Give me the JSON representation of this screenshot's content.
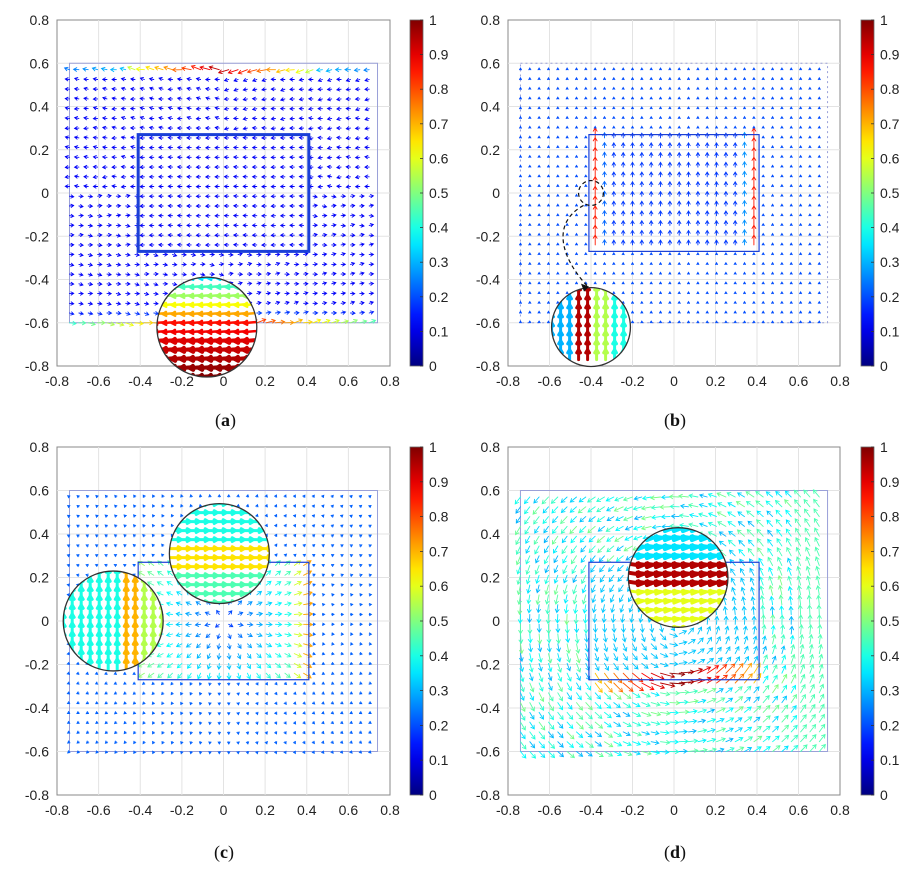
{
  "figure": {
    "panels": [
      {
        "id": "a",
        "caption_open": "(",
        "caption_letter": "a",
        "caption_close": ")"
      },
      {
        "id": "b",
        "caption_open": "(",
        "caption_letter": "b",
        "caption_close": ")"
      },
      {
        "id": "c",
        "caption_open": "(",
        "caption_letter": "c",
        "caption_close": ")"
      },
      {
        "id": "d",
        "caption_open": "(",
        "caption_letter": "d",
        "caption_close": ")"
      }
    ]
  },
  "chart_data": [
    {
      "panel": "a",
      "type": "quiver",
      "xlim": [
        -0.8,
        0.8
      ],
      "ylim": [
        -0.8,
        0.8
      ],
      "xticks": [
        "-0.8",
        "-0.6",
        "-0.4",
        "-0.2",
        "0",
        "0.2",
        "0.4",
        "0.6",
        "0.8"
      ],
      "yticks": [
        "0.8",
        "0.6",
        "0.4",
        "0.2",
        "0",
        "-0.2",
        "-0.4",
        "-0.6",
        "-0.8"
      ],
      "grid": true,
      "outer_rect": [
        -0.74,
        0.74,
        -0.6,
        0.6
      ],
      "inner_rect": [
        -0.41,
        0.41,
        -0.27,
        0.27
      ],
      "pattern": "shear_top_bottom",
      "zoom_inset": {
        "cx": -0.08,
        "cy": -0.62,
        "r": 0.24,
        "theme": "red_arrows_left"
      },
      "colorbar": {
        "range": [
          0,
          1
        ],
        "ticks": [
          "1",
          "0.9",
          "0.8",
          "0.7",
          "0.6",
          "0.5",
          "0.4",
          "0.3",
          "0.2",
          "0.1",
          "0"
        ],
        "colormap": "jet"
      }
    },
    {
      "panel": "b",
      "type": "quiver",
      "xlim": [
        -0.8,
        0.8
      ],
      "ylim": [
        -0.8,
        0.8
      ],
      "xticks": [
        "-0.8",
        "-0.6",
        "-0.4",
        "-0.2",
        "0",
        "0.2",
        "0.4",
        "0.6",
        "0.8"
      ],
      "yticks": [
        "0.8",
        "0.6",
        "0.4",
        "0.2",
        "0",
        "-0.2",
        "-0.4",
        "-0.6",
        "-0.8"
      ],
      "grid": true,
      "outer_rect": [
        -0.74,
        0.74,
        -0.6,
        0.6
      ],
      "inner_rect": [
        -0.41,
        0.41,
        -0.27,
        0.27
      ],
      "pattern": "vertical_inner",
      "zoom_source": {
        "cx": -0.4,
        "cy": 0.0,
        "r": 0.06
      },
      "zoom_inset": {
        "cx": -0.4,
        "cy": -0.62,
        "r": 0.19,
        "theme": "vertical_bands"
      },
      "colorbar": {
        "range": [
          0,
          1
        ],
        "ticks": [
          "1",
          "0.9",
          "0.8",
          "0.7",
          "0.6",
          "0.5",
          "0.4",
          "0.3",
          "0.2",
          "0.1",
          "0"
        ],
        "colormap": "jet"
      }
    },
    {
      "panel": "c",
      "type": "quiver",
      "xlim": [
        -0.8,
        0.8
      ],
      "ylim": [
        -0.8,
        0.8
      ],
      "xticks": [
        "-0.8",
        "-0.6",
        "-0.4",
        "-0.2",
        "0",
        "0.2",
        "0.4",
        "0.6",
        "0.8"
      ],
      "yticks": [
        "0.8",
        "0.6",
        "0.4",
        "0.2",
        "0",
        "-0.2",
        "-0.4",
        "-0.6",
        "-0.8"
      ],
      "grid": true,
      "outer_rect": [
        -0.74,
        0.74,
        -0.6,
        0.6
      ],
      "inner_rect": [
        -0.41,
        0.41,
        -0.27,
        0.27
      ],
      "pattern": "radial_inner",
      "zoom_insets": [
        {
          "cx": -0.02,
          "cy": 0.31,
          "r": 0.24,
          "theme": "horizontal_mixed"
        },
        {
          "cx": -0.53,
          "cy": 0.0,
          "r": 0.24,
          "theme": "vertical_bands_c"
        }
      ],
      "colorbar": {
        "range": [
          0,
          1
        ],
        "ticks": [
          "1",
          "0.9",
          "0.8",
          "0.7",
          "0.6",
          "0.5",
          "0.4",
          "0.3",
          "0.2",
          "0.1",
          "0"
        ],
        "colormap": "jet"
      }
    },
    {
      "panel": "d",
      "type": "quiver",
      "xlim": [
        -0.8,
        0.8
      ],
      "ylim": [
        -0.8,
        0.8
      ],
      "xticks": [
        "-0.8",
        "-0.6",
        "-0.4",
        "-0.2",
        "0",
        "0.2",
        "0.4",
        "0.6",
        "0.8"
      ],
      "yticks": [
        "0.8",
        "0.6",
        "0.4",
        "0.2",
        "0",
        "-0.2",
        "-0.4",
        "-0.6",
        "-0.8"
      ],
      "grid": true,
      "outer_rect": [
        -0.74,
        0.74,
        -0.6,
        0.6
      ],
      "inner_rect": [
        -0.41,
        0.41,
        -0.27,
        0.27
      ],
      "pattern": "circulating",
      "zoom_inset": {
        "cx": 0.02,
        "cy": 0.2,
        "r": 0.24,
        "theme": "red_arrows_right"
      },
      "colorbar": {
        "range": [
          0,
          1
        ],
        "ticks": [
          "1",
          "0.9",
          "0.8",
          "0.7",
          "0.6",
          "0.5",
          "0.4",
          "0.3",
          "0.2",
          "0.1",
          "0"
        ],
        "colormap": "jet"
      }
    }
  ]
}
